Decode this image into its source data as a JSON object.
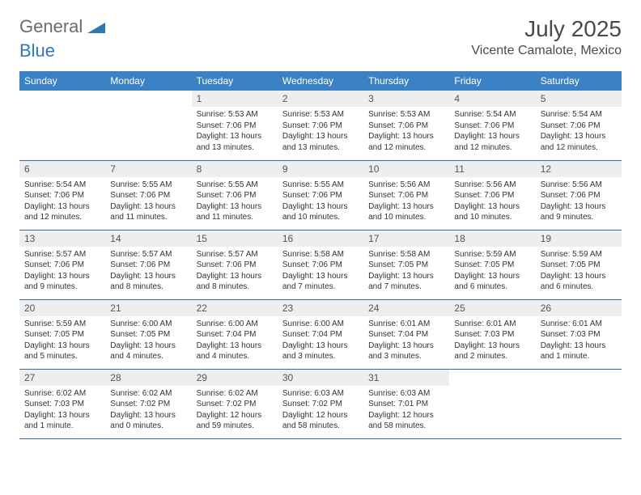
{
  "logo": {
    "word1": "General",
    "word2": "Blue"
  },
  "title": {
    "month": "July 2025",
    "location": "Vicente Camalote, Mexico"
  },
  "colors": {
    "header_bg": "#3b82c4",
    "header_text": "#ffffff",
    "daynum_bg": "#eceeef",
    "row_border": "#3b6a9a",
    "logo_gray": "#6b6b6b",
    "logo_blue": "#2f78b8"
  },
  "dayNames": [
    "Sunday",
    "Monday",
    "Tuesday",
    "Wednesday",
    "Thursday",
    "Friday",
    "Saturday"
  ],
  "weeks": [
    [
      {
        "empty": true
      },
      {
        "empty": true
      },
      {
        "num": "1",
        "sunrise": "5:53 AM",
        "sunset": "7:06 PM",
        "daylight": "13 hours and 13 minutes."
      },
      {
        "num": "2",
        "sunrise": "5:53 AM",
        "sunset": "7:06 PM",
        "daylight": "13 hours and 13 minutes."
      },
      {
        "num": "3",
        "sunrise": "5:53 AM",
        "sunset": "7:06 PM",
        "daylight": "13 hours and 12 minutes."
      },
      {
        "num": "4",
        "sunrise": "5:54 AM",
        "sunset": "7:06 PM",
        "daylight": "13 hours and 12 minutes."
      },
      {
        "num": "5",
        "sunrise": "5:54 AM",
        "sunset": "7:06 PM",
        "daylight": "13 hours and 12 minutes."
      }
    ],
    [
      {
        "num": "6",
        "sunrise": "5:54 AM",
        "sunset": "7:06 PM",
        "daylight": "13 hours and 12 minutes."
      },
      {
        "num": "7",
        "sunrise": "5:55 AM",
        "sunset": "7:06 PM",
        "daylight": "13 hours and 11 minutes."
      },
      {
        "num": "8",
        "sunrise": "5:55 AM",
        "sunset": "7:06 PM",
        "daylight": "13 hours and 11 minutes."
      },
      {
        "num": "9",
        "sunrise": "5:55 AM",
        "sunset": "7:06 PM",
        "daylight": "13 hours and 10 minutes."
      },
      {
        "num": "10",
        "sunrise": "5:56 AM",
        "sunset": "7:06 PM",
        "daylight": "13 hours and 10 minutes."
      },
      {
        "num": "11",
        "sunrise": "5:56 AM",
        "sunset": "7:06 PM",
        "daylight": "13 hours and 10 minutes."
      },
      {
        "num": "12",
        "sunrise": "5:56 AM",
        "sunset": "7:06 PM",
        "daylight": "13 hours and 9 minutes."
      }
    ],
    [
      {
        "num": "13",
        "sunrise": "5:57 AM",
        "sunset": "7:06 PM",
        "daylight": "13 hours and 9 minutes."
      },
      {
        "num": "14",
        "sunrise": "5:57 AM",
        "sunset": "7:06 PM",
        "daylight": "13 hours and 8 minutes."
      },
      {
        "num": "15",
        "sunrise": "5:57 AM",
        "sunset": "7:06 PM",
        "daylight": "13 hours and 8 minutes."
      },
      {
        "num": "16",
        "sunrise": "5:58 AM",
        "sunset": "7:06 PM",
        "daylight": "13 hours and 7 minutes."
      },
      {
        "num": "17",
        "sunrise": "5:58 AM",
        "sunset": "7:05 PM",
        "daylight": "13 hours and 7 minutes."
      },
      {
        "num": "18",
        "sunrise": "5:59 AM",
        "sunset": "7:05 PM",
        "daylight": "13 hours and 6 minutes."
      },
      {
        "num": "19",
        "sunrise": "5:59 AM",
        "sunset": "7:05 PM",
        "daylight": "13 hours and 6 minutes."
      }
    ],
    [
      {
        "num": "20",
        "sunrise": "5:59 AM",
        "sunset": "7:05 PM",
        "daylight": "13 hours and 5 minutes."
      },
      {
        "num": "21",
        "sunrise": "6:00 AM",
        "sunset": "7:05 PM",
        "daylight": "13 hours and 4 minutes."
      },
      {
        "num": "22",
        "sunrise": "6:00 AM",
        "sunset": "7:04 PM",
        "daylight": "13 hours and 4 minutes."
      },
      {
        "num": "23",
        "sunrise": "6:00 AM",
        "sunset": "7:04 PM",
        "daylight": "13 hours and 3 minutes."
      },
      {
        "num": "24",
        "sunrise": "6:01 AM",
        "sunset": "7:04 PM",
        "daylight": "13 hours and 3 minutes."
      },
      {
        "num": "25",
        "sunrise": "6:01 AM",
        "sunset": "7:03 PM",
        "daylight": "13 hours and 2 minutes."
      },
      {
        "num": "26",
        "sunrise": "6:01 AM",
        "sunset": "7:03 PM",
        "daylight": "13 hours and 1 minute."
      }
    ],
    [
      {
        "num": "27",
        "sunrise": "6:02 AM",
        "sunset": "7:03 PM",
        "daylight": "13 hours and 1 minute."
      },
      {
        "num": "28",
        "sunrise": "6:02 AM",
        "sunset": "7:02 PM",
        "daylight": "13 hours and 0 minutes."
      },
      {
        "num": "29",
        "sunrise": "6:02 AM",
        "sunset": "7:02 PM",
        "daylight": "12 hours and 59 minutes."
      },
      {
        "num": "30",
        "sunrise": "6:03 AM",
        "sunset": "7:02 PM",
        "daylight": "12 hours and 58 minutes."
      },
      {
        "num": "31",
        "sunrise": "6:03 AM",
        "sunset": "7:01 PM",
        "daylight": "12 hours and 58 minutes."
      },
      {
        "empty": true
      },
      {
        "empty": true
      }
    ]
  ],
  "labels": {
    "sunrise": "Sunrise:",
    "sunset": "Sunset:",
    "daylight": "Daylight:"
  }
}
